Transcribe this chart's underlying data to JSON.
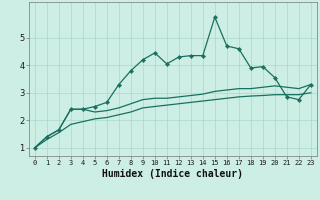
{
  "xlabel": "Humidex (Indice chaleur)",
  "x_values": [
    0,
    1,
    2,
    3,
    4,
    5,
    6,
    7,
    8,
    9,
    10,
    11,
    12,
    13,
    14,
    15,
    16,
    17,
    18,
    19,
    20,
    21,
    22,
    23
  ],
  "line1_y": [
    1.0,
    1.4,
    1.65,
    2.4,
    2.4,
    2.5,
    2.65,
    3.3,
    3.8,
    4.2,
    4.45,
    4.05,
    4.3,
    4.35,
    4.35,
    5.75,
    4.7,
    4.6,
    3.9,
    3.95,
    3.55,
    2.85,
    2.75,
    3.3
  ],
  "line2_y": [
    1.0,
    1.4,
    1.65,
    2.4,
    2.4,
    2.3,
    2.35,
    2.45,
    2.6,
    2.75,
    2.8,
    2.8,
    2.85,
    2.9,
    2.95,
    3.05,
    3.1,
    3.15,
    3.15,
    3.2,
    3.25,
    3.2,
    3.15,
    3.3
  ],
  "line3_y": [
    1.0,
    1.3,
    1.55,
    1.85,
    1.95,
    2.05,
    2.1,
    2.2,
    2.3,
    2.45,
    2.5,
    2.55,
    2.6,
    2.65,
    2.7,
    2.75,
    2.8,
    2.85,
    2.88,
    2.9,
    2.93,
    2.93,
    2.93,
    3.0
  ],
  "line_color": "#1a7060",
  "bg_color": "#cceee4",
  "grid_color": "#aad8cc",
  "ylim": [
    0.7,
    6.3
  ],
  "yticks": [
    1,
    2,
    3,
    4,
    5
  ],
  "xlim": [
    -0.5,
    23.5
  ],
  "tick_label_size": 5,
  "xlabel_size": 7
}
